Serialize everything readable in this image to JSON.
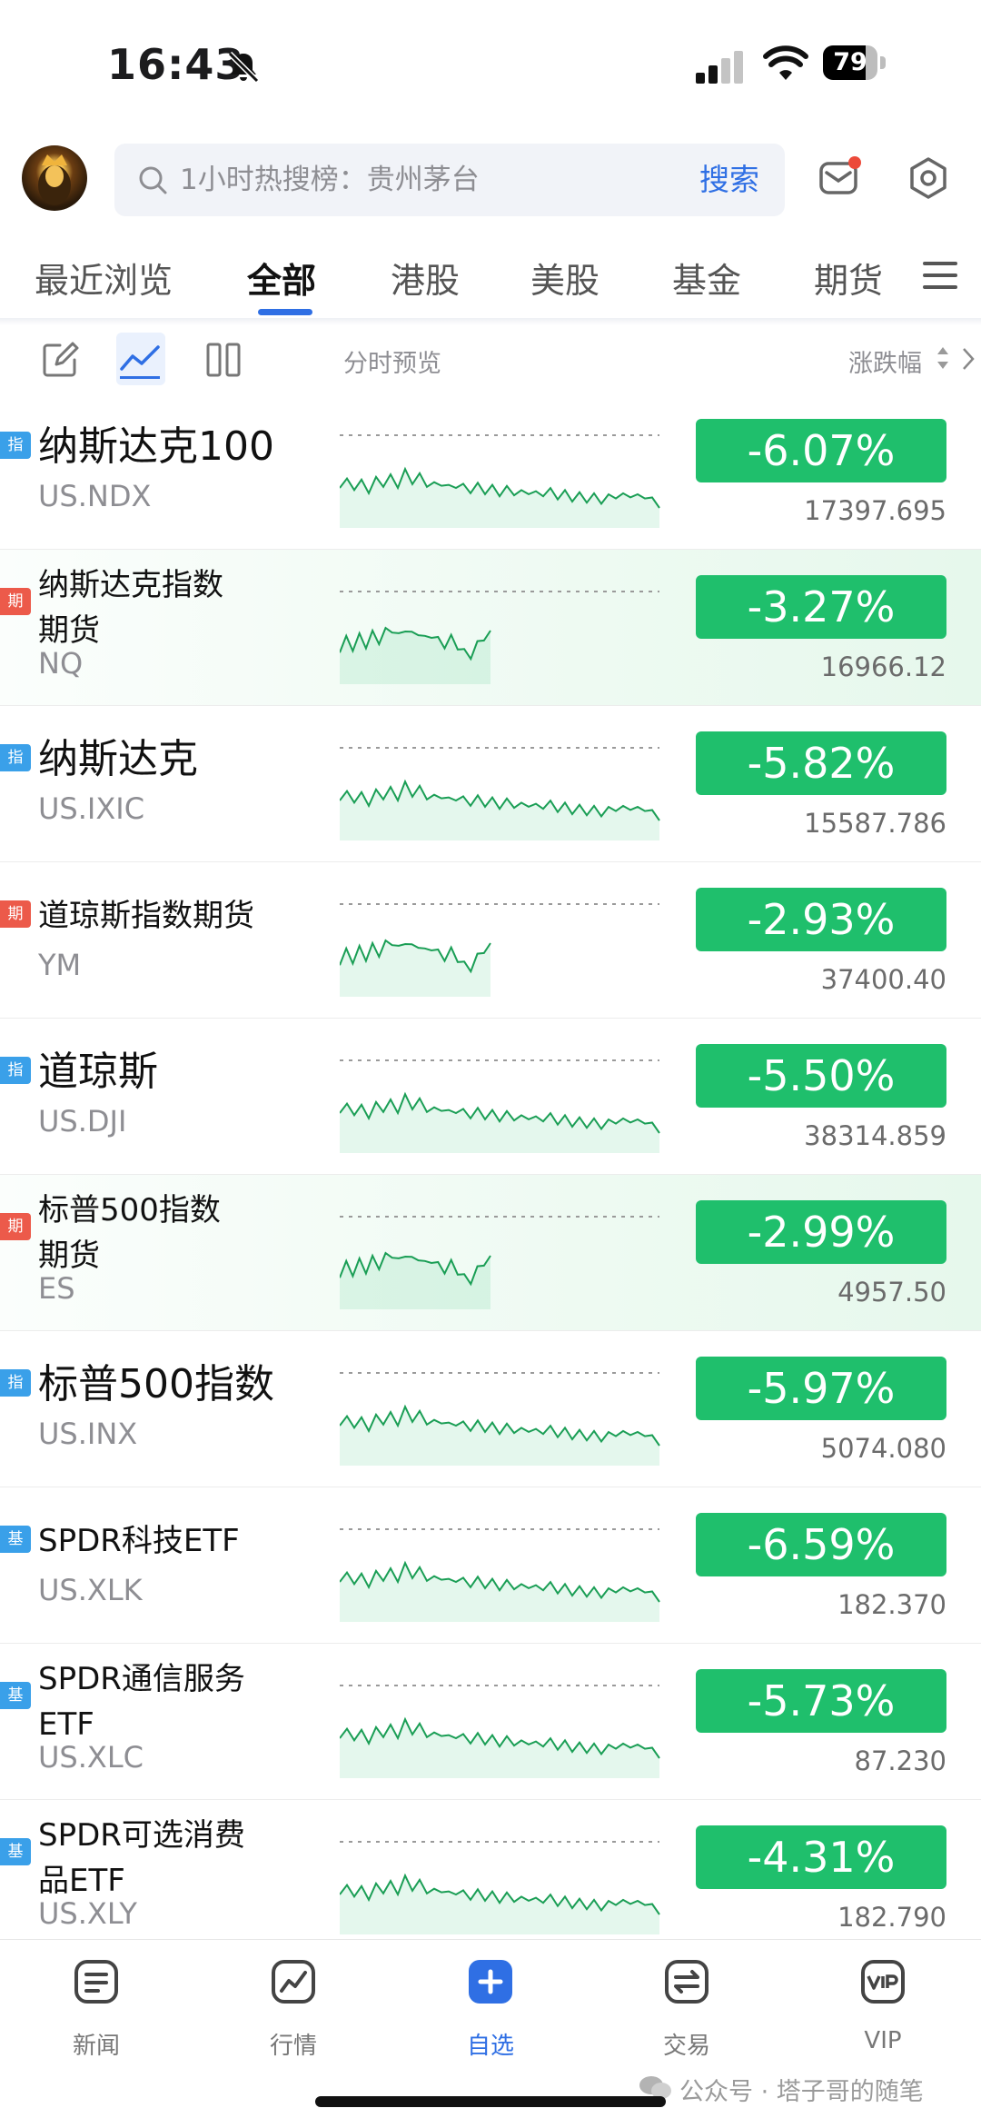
{
  "status_bar": {
    "time": "16:43",
    "battery": "79",
    "battery_level": 0.79
  },
  "header": {
    "search_placeholder": "1小时热搜榜：贵州茅台",
    "search_button": "搜索"
  },
  "tabs": [
    {
      "label": "最近浏览"
    },
    {
      "label": "全部",
      "active": true
    },
    {
      "label": "港股"
    },
    {
      "label": "美股"
    },
    {
      "label": "基金"
    },
    {
      "label": "期货"
    }
  ],
  "toolbar": {
    "preview_label": "分时预览",
    "sort_label": "涨跌幅"
  },
  "colors": {
    "accent": "#2f6fe4",
    "down": "#1fbf6c",
    "index_tag": "#3aa0e9",
    "futures_tag": "#ec5a4a"
  },
  "rows": [
    {
      "tag": "指",
      "tag_type": "idx",
      "name": "纳斯达克100",
      "code": "US.NDX",
      "change": "-6.07%",
      "price": "17397.695",
      "name_style": "large",
      "highlight": false,
      "chart": "full"
    },
    {
      "tag": "期",
      "tag_type": "fut",
      "name": "纳斯达克指数\n期货",
      "code": "NQ",
      "change": "-3.27%",
      "price": "16966.12",
      "name_style": "small2",
      "highlight": true,
      "chart": "partial"
    },
    {
      "tag": "指",
      "tag_type": "idx",
      "name": "纳斯达克",
      "code": "US.IXIC",
      "change": "-5.82%",
      "price": "15587.786",
      "name_style": "large",
      "highlight": false,
      "chart": "full"
    },
    {
      "tag": "期",
      "tag_type": "fut",
      "name": "道琼斯指数期货",
      "code": "YM",
      "change": "-2.93%",
      "price": "37400.40",
      "name_style": "small1",
      "highlight": false,
      "chart": "partial"
    },
    {
      "tag": "指",
      "tag_type": "idx",
      "name": "道琼斯",
      "code": "US.DJI",
      "change": "-5.50%",
      "price": "38314.859",
      "name_style": "large",
      "highlight": false,
      "chart": "full"
    },
    {
      "tag": "期",
      "tag_type": "fut",
      "name": "标普500指数\n期货",
      "code": "ES",
      "change": "-2.99%",
      "price": "4957.50",
      "name_style": "small2",
      "highlight": true,
      "chart": "partial"
    },
    {
      "tag": "指",
      "tag_type": "idx",
      "name": "标普500指数",
      "code": "US.INX",
      "change": "-5.97%",
      "price": "5074.080",
      "name_style": "large",
      "highlight": false,
      "chart": "full"
    },
    {
      "tag": "基",
      "tag_type": "fund",
      "name": "SPDR科技ETF",
      "code": "US.XLK",
      "change": "-6.59%",
      "price": "182.370",
      "name_style": "small1",
      "highlight": false,
      "chart": "full"
    },
    {
      "tag": "基",
      "tag_type": "fund",
      "name": "SPDR通信服务\nETF",
      "code": "US.XLC",
      "change": "-5.73%",
      "price": "87.230",
      "name_style": "small2",
      "highlight": false,
      "chart": "full"
    },
    {
      "tag": "基",
      "tag_type": "fund",
      "name": "SPDR可选消费\n品ETF",
      "code": "US.XLY",
      "change": "-4.31%",
      "price": "182.790",
      "name_style": "small2",
      "highlight": false,
      "chart": "full"
    }
  ],
  "bottom_nav": [
    {
      "label": "新闻",
      "icon": "news-icon"
    },
    {
      "label": "行情",
      "icon": "market-icon"
    },
    {
      "label": "自选",
      "icon": "watchlist-icon",
      "active": true
    },
    {
      "label": "交易",
      "icon": "trade-icon"
    },
    {
      "label": "VIP",
      "icon": "vip-icon"
    }
  ],
  "watermark": "公众号 · 塔子哥的随笔"
}
